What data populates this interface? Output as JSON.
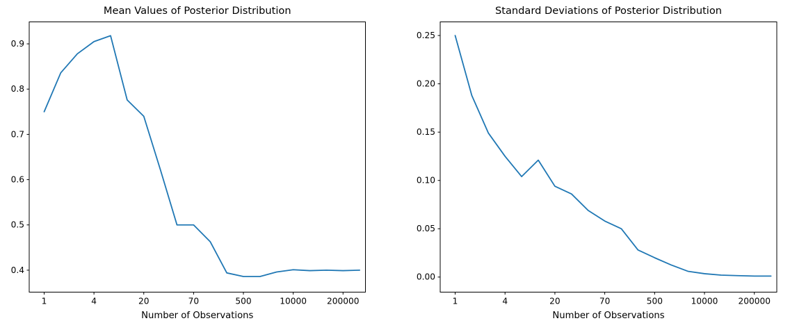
{
  "figure": {
    "background_color": "#ffffff",
    "text_color": "#000000",
    "accent_color": "#1f77b4"
  },
  "chart_data": [
    {
      "type": "line",
      "title": "Mean Values of Posterior Distribution",
      "xlabel": "Number of Observations",
      "ylabel": "",
      "grid": false,
      "legend": null,
      "line_color": "#1f77b4",
      "x_scale_note": "20 evenly spaced sample points; ticks label every 3rd point (log-like observation counts)",
      "x_tick_indices": [
        0,
        3,
        6,
        9,
        12,
        15,
        18
      ],
      "x_tick_labels": [
        "1",
        "4",
        "20",
        "70",
        "500",
        "10000",
        "200000"
      ],
      "y_tick_values": [
        0.4,
        0.5,
        0.6,
        0.7,
        0.8,
        0.9
      ],
      "y_tick_labels": [
        "0.4",
        "0.5",
        "0.6",
        "0.7",
        "0.8",
        "0.9"
      ],
      "ylim": [
        0.3515,
        0.9485
      ],
      "xlim_index": [
        -0.9,
        19.35
      ],
      "values": [
        0.75,
        0.836,
        0.878,
        0.905,
        0.918,
        0.776,
        0.74,
        0.622,
        0.5,
        0.5,
        0.463,
        0.394,
        0.386,
        0.386,
        0.396,
        0.401,
        0.399,
        0.4,
        0.399,
        0.4
      ]
    },
    {
      "type": "line",
      "title": "Standard Deviations of Posterior Distribution",
      "xlabel": "Number of Observations",
      "ylabel": "",
      "grid": false,
      "legend": null,
      "line_color": "#1f77b4",
      "x_scale_note": "20 evenly spaced sample points; ticks label every 3rd point (log-like observation counts)",
      "x_tick_indices": [
        0,
        3,
        6,
        9,
        12,
        15,
        18
      ],
      "x_tick_labels": [
        "1",
        "4",
        "20",
        "70",
        "500",
        "10000",
        "200000"
      ],
      "y_tick_values": [
        0.0,
        0.05,
        0.1,
        0.15,
        0.2,
        0.25
      ],
      "y_tick_labels": [
        "0.00",
        "0.05",
        "0.10",
        "0.15",
        "0.20",
        "0.25"
      ],
      "ylim": [
        -0.0156,
        0.2641
      ],
      "xlim_index": [
        -0.9,
        19.35
      ],
      "values": [
        0.25,
        0.188,
        0.149,
        0.125,
        0.104,
        0.121,
        0.094,
        0.086,
        0.069,
        0.058,
        0.05,
        0.028,
        0.02,
        0.0125,
        0.006,
        0.0035,
        0.002,
        0.0015,
        0.001,
        0.001
      ]
    }
  ]
}
